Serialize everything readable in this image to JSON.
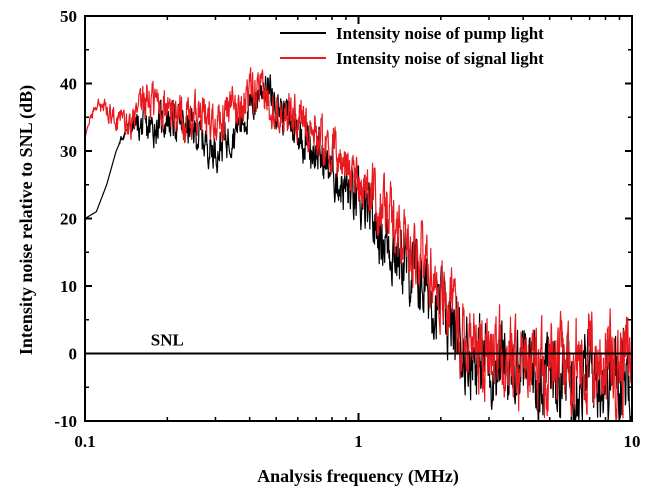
{
  "chart_data": {
    "type": "line",
    "title": "",
    "xlabel": "Analysis frequency (MHz)",
    "ylabel": "Intensity noise relative to SNL (dB)",
    "xscale": "log",
    "xlim": [
      0.1,
      10
    ],
    "ylim": [
      -10,
      50
    ],
    "x_ticks": [
      0.1,
      1,
      10
    ],
    "x_tick_labels": [
      "0.1",
      "1",
      "10"
    ],
    "y_ticks": [
      -10,
      0,
      10,
      20,
      30,
      40,
      50
    ],
    "y_tick_labels": [
      "-10",
      "0",
      "10",
      "20",
      "30",
      "40",
      "50"
    ],
    "grid": false,
    "legend_position": "top-right",
    "annotations": [
      {
        "text": "SNL",
        "x": 0.2,
        "y": 0
      }
    ],
    "reference_lines": [
      {
        "name": "SNL",
        "y": 0,
        "color": "#000000"
      }
    ],
    "series": [
      {
        "name": "Intensity noise of pump light",
        "color": "#000000",
        "noisy": true,
        "x": [
          0.1,
          0.11,
          0.12,
          0.13,
          0.14,
          0.15,
          0.17,
          0.2,
          0.25,
          0.3,
          0.35,
          0.4,
          0.45,
          0.5,
          0.6,
          0.7,
          0.8,
          1.0,
          1.2,
          1.5,
          1.8,
          2.1,
          2.4,
          2.8,
          3.5,
          5,
          7,
          10
        ],
        "y": [
          20,
          21,
          25,
          30,
          33,
          34,
          33,
          35,
          33,
          30,
          33,
          36,
          40,
          37,
          33,
          30,
          27,
          22,
          18,
          13,
          9,
          5,
          1,
          -1,
          -2,
          -3,
          -3,
          -3
        ],
        "noise_amplitude": [
          0,
          0,
          0,
          0,
          1,
          2,
          3,
          3,
          3,
          3,
          3,
          3,
          3,
          3,
          3.5,
          4,
          4,
          4.5,
          5,
          5.5,
          5.5,
          6,
          6,
          7,
          7,
          7,
          7,
          7
        ]
      },
      {
        "name": "Intensity noise of signal light",
        "color": "#e8191f",
        "noisy": true,
        "x": [
          0.1,
          0.105,
          0.11,
          0.12,
          0.13,
          0.14,
          0.15,
          0.17,
          0.2,
          0.25,
          0.3,
          0.35,
          0.4,
          0.45,
          0.5,
          0.6,
          0.7,
          0.8,
          1.0,
          1.2,
          1.5,
          1.8,
          2.1,
          2.4,
          2.8,
          3.5,
          5,
          7,
          10
        ],
        "y": [
          32,
          35,
          37,
          36,
          35,
          34,
          34,
          38,
          36,
          35,
          35,
          36,
          38,
          38,
          37,
          35,
          33,
          30,
          26,
          22,
          17,
          13,
          8,
          3,
          0,
          -1,
          -1,
          -1,
          -1
        ],
        "noise_amplitude": [
          0,
          1,
          1,
          1.5,
          2,
          2,
          2.5,
          3.5,
          3.5,
          3.5,
          3.5,
          3.5,
          3.5,
          3.5,
          3.5,
          3.5,
          4,
          4,
          4.5,
          5,
          5,
          5.5,
          6,
          6.5,
          7,
          7.5,
          8,
          8,
          8
        ]
      }
    ]
  }
}
